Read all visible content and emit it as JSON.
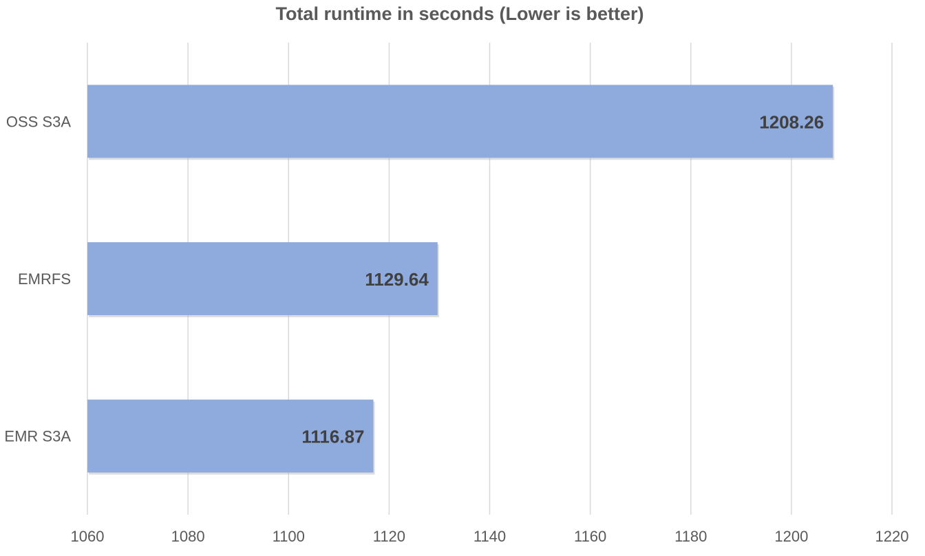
{
  "chart_data": {
    "type": "bar",
    "orientation": "horizontal",
    "title": "Total runtime in seconds (Lower is better)",
    "xlabel": "",
    "ylabel": "",
    "categories": [
      "OSS S3A",
      "EMRFS",
      "EMR S3A"
    ],
    "values": [
      1208.26,
      1129.64,
      1116.87
    ],
    "data_labels": [
      "1208.26",
      "1129.64",
      "1116.87"
    ],
    "xlim": [
      1060,
      1220
    ],
    "x_ticks": [
      1060,
      1080,
      1100,
      1120,
      1140,
      1160,
      1180,
      1200,
      1220
    ],
    "x_tick_labels": [
      "1060",
      "1080",
      "1100",
      "1120",
      "1140",
      "1160",
      "1180",
      "1200",
      "1220"
    ],
    "grid": "vertical",
    "legend": "none",
    "bar_color": "#8faadc"
  }
}
